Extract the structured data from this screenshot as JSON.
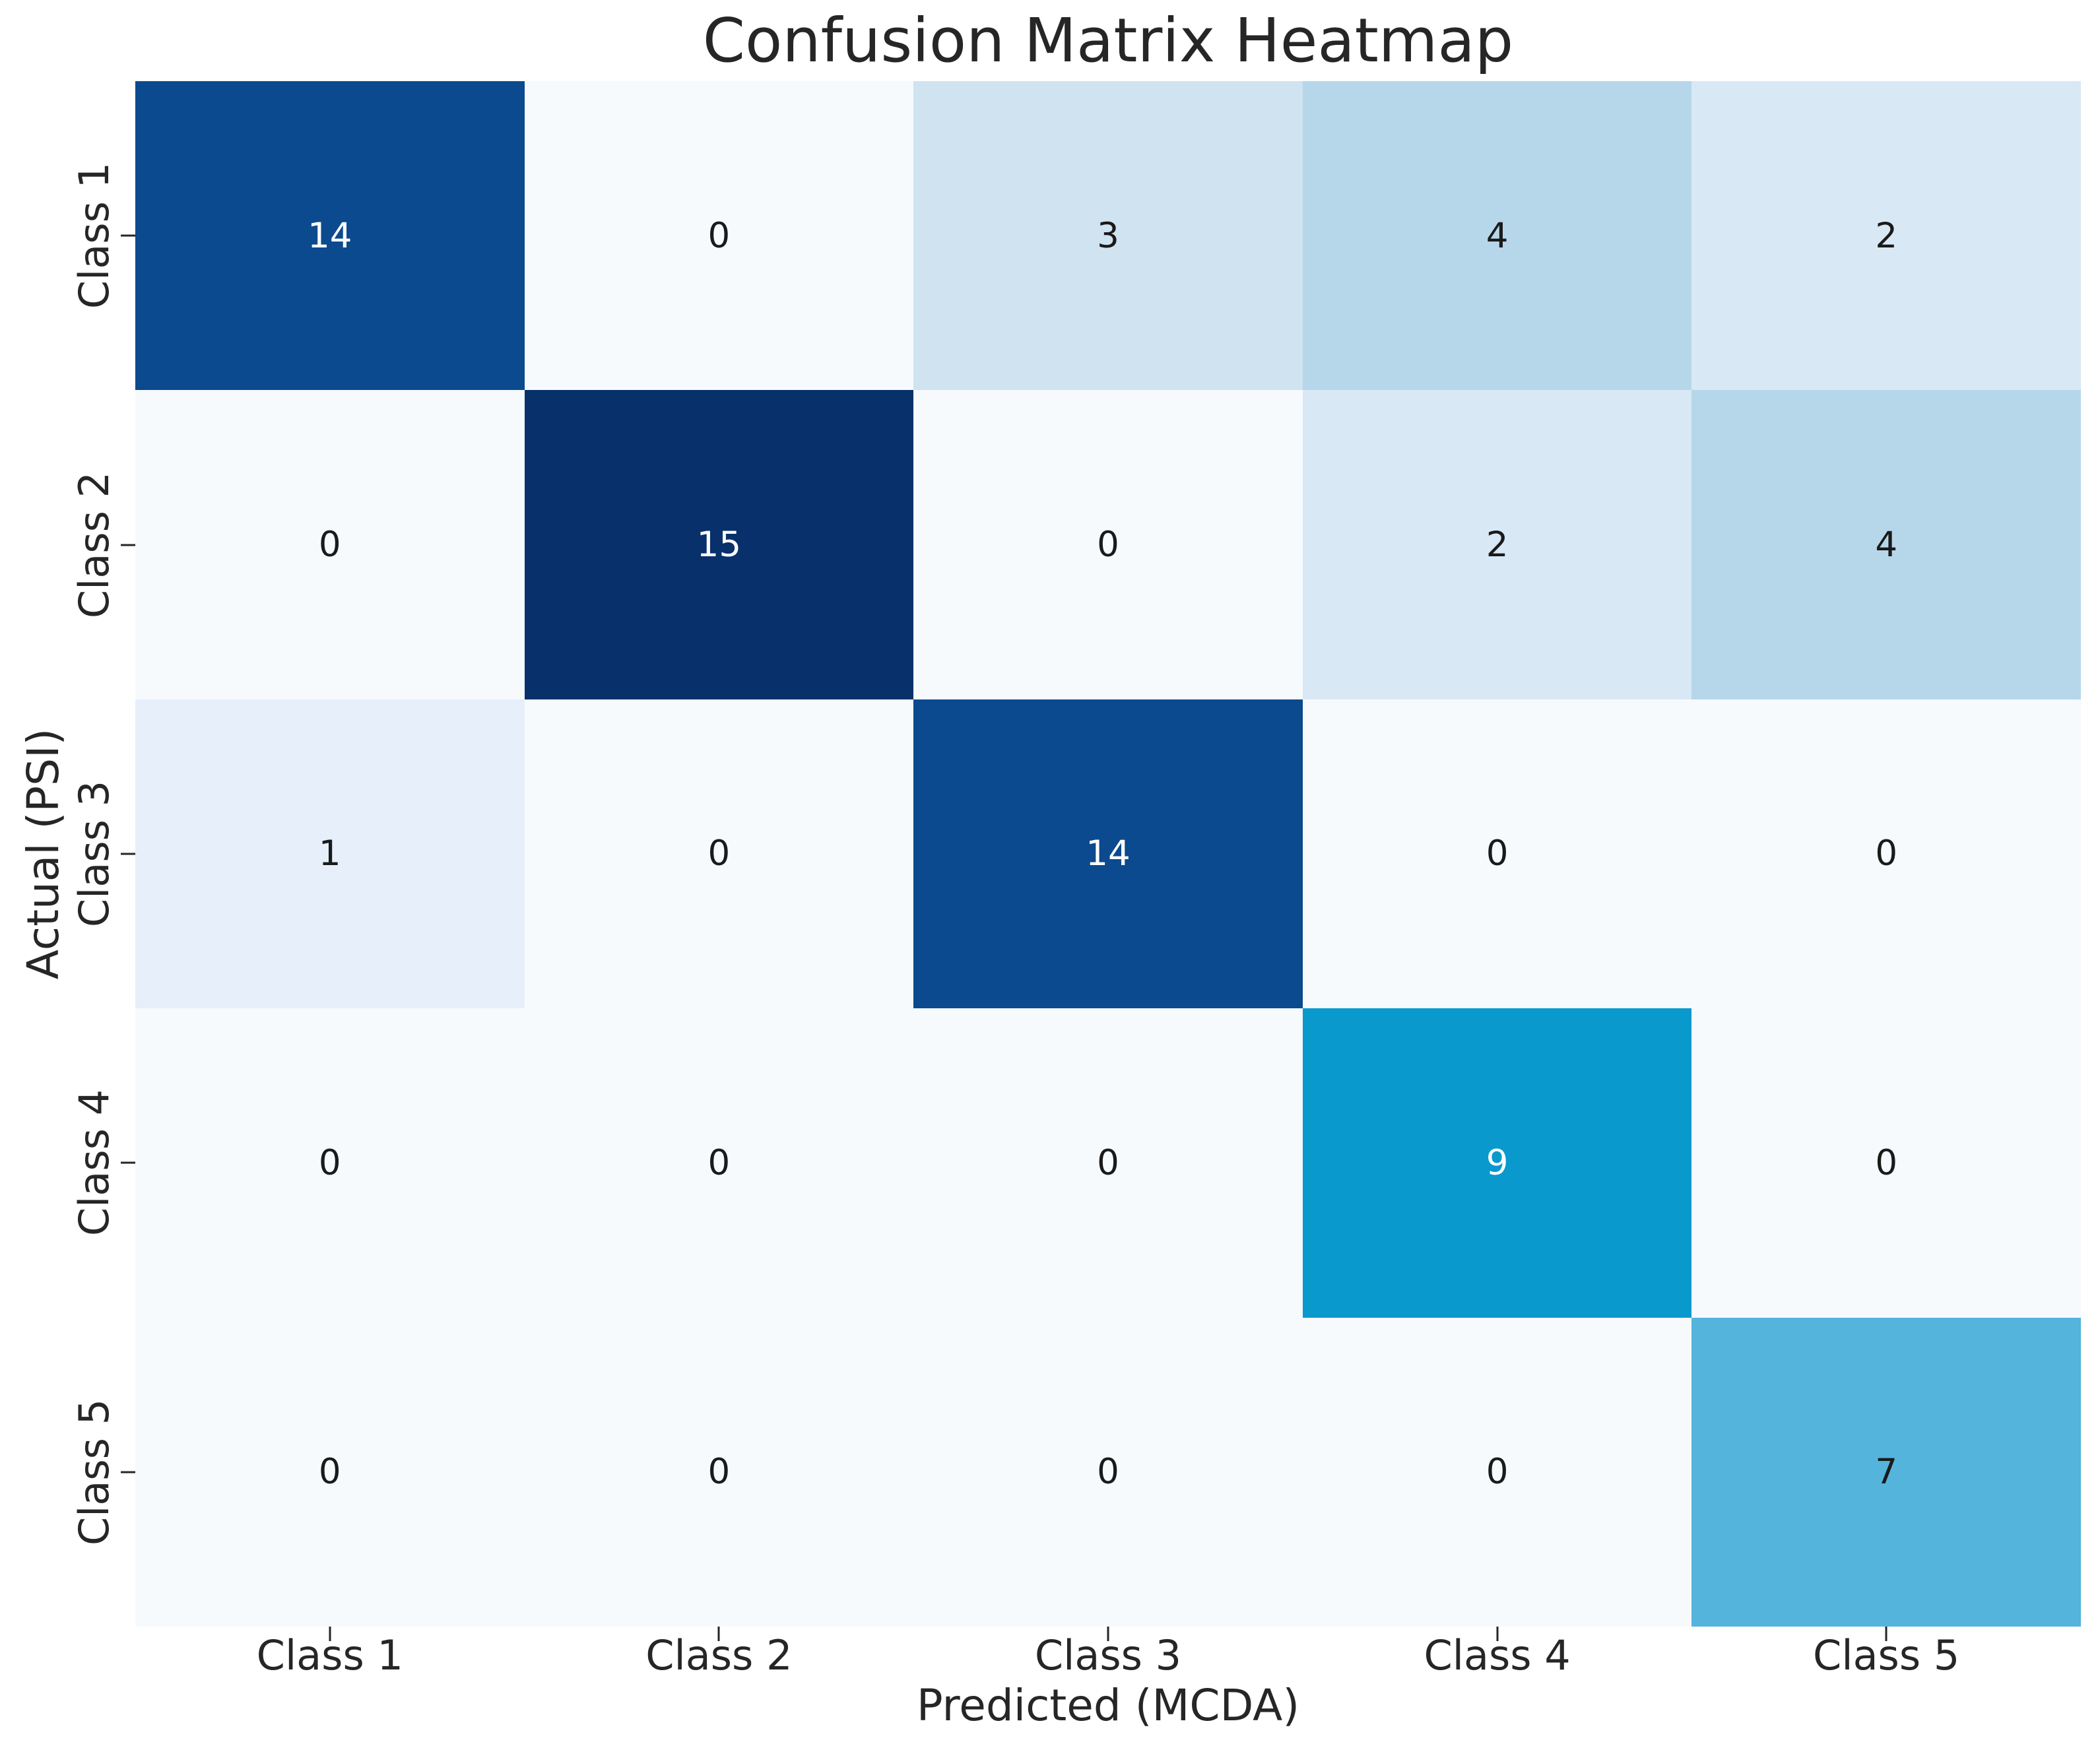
{
  "chart_data": {
    "type": "heatmap",
    "title": "Confusion Matrix Heatmap",
    "xlabel": "Predicted (MCDA)",
    "ylabel": "Actual (PSI)",
    "x_categories": [
      "Class 1",
      "Class 2",
      "Class 3",
      "Class 4",
      "Class 5"
    ],
    "y_categories": [
      "Class 1",
      "Class 2",
      "Class 3",
      "Class 4",
      "Class 5"
    ],
    "matrix": [
      [
        14,
        0,
        3,
        4,
        2
      ],
      [
        0,
        15,
        0,
        2,
        4
      ],
      [
        1,
        0,
        14,
        0,
        0
      ],
      [
        0,
        0,
        0,
        9,
        0
      ],
      [
        0,
        0,
        0,
        0,
        7
      ]
    ],
    "value_range": [
      0,
      15
    ],
    "colormap": "blue-sequential",
    "value_colors": {
      "0": "#f6fafd",
      "1": "#e6effa",
      "2": "#d8e8f5",
      "3": "#cfe3f1",
      "4": "#b6d7ea",
      "7": "#54b4dc",
      "9": "#0999cd",
      "14": "#0b4a8e",
      "15": "#08306b"
    },
    "white_text_values": [
      9,
      14,
      15
    ],
    "annotation_color_dark": "#1a1a1a",
    "annotation_color_light": "#ffffff",
    "tick_color": "#262626",
    "background_color": "#ffffff",
    "legend": "none",
    "grid": false
  }
}
